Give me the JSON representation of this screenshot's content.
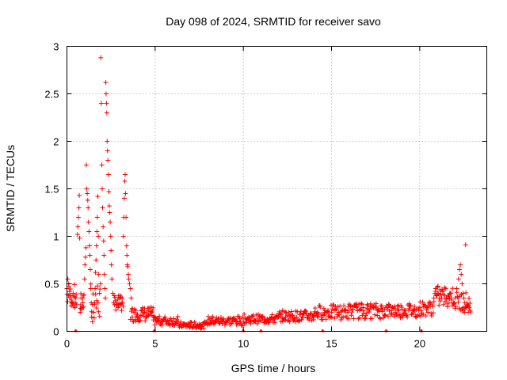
{
  "chart_data": {
    "type": "scatter",
    "title": "Day 098 of 2024, SRMTID for receiver savo",
    "xlabel": "GPS time / hours",
    "ylabel": "SRMTID / TECUs",
    "xlim": [
      0,
      23.8
    ],
    "ylim": [
      0,
      3
    ],
    "grid": true,
    "marker": "+",
    "color": "#ff0000",
    "xticks": [
      "0",
      "5",
      "10",
      "15",
      "20"
    ],
    "yticks": [
      "0",
      "0.5",
      "1",
      "1.5",
      "2",
      "2.5",
      "3"
    ],
    "series": [
      {
        "name": "SRMTID",
        "points": [
          [
            0.0,
            0.45
          ],
          [
            0.05,
            0.55
          ],
          [
            0.1,
            0.5
          ],
          [
            0.15,
            0.42
          ],
          [
            0.2,
            0.38
          ],
          [
            0.25,
            0.33
          ],
          [
            0.3,
            0.3
          ],
          [
            0.35,
            0.4
          ],
          [
            0.4,
            0.3
          ],
          [
            0.45,
            0.25
          ],
          [
            0.5,
            0.35
          ],
          [
            0.55,
            0.28
          ],
          [
            0.6,
            1.02
          ],
          [
            0.62,
            1.1
          ],
          [
            0.65,
            1.2
          ],
          [
            0.68,
            1.3
          ],
          [
            0.7,
            1.43
          ],
          [
            0.72,
            0.98
          ],
          [
            0.75,
            0.2
          ],
          [
            0.78,
            0.28
          ],
          [
            0.8,
            0.35
          ],
          [
            0.85,
            0.25
          ],
          [
            0.9,
            0.3
          ],
          [
            0.95,
            0.38
          ],
          [
            1.0,
            0.55
          ],
          [
            1.02,
            0.7
          ],
          [
            1.05,
            0.78
          ],
          [
            1.08,
            0.88
          ],
          [
            1.1,
            1.75
          ],
          [
            1.12,
            1.5
          ],
          [
            1.15,
            1.45
          ],
          [
            1.18,
            1.38
          ],
          [
            1.2,
            1.3
          ],
          [
            1.22,
            1.15
          ],
          [
            1.25,
            1.05
          ],
          [
            1.28,
            0.9
          ],
          [
            1.3,
            0.8
          ],
          [
            1.32,
            0.65
          ],
          [
            1.35,
            0.45
          ],
          [
            1.38,
            0.3
          ],
          [
            1.4,
            0.15
          ],
          [
            1.45,
            0.1
          ],
          [
            1.5,
            0.2
          ],
          [
            1.55,
            0.3
          ],
          [
            1.6,
            0.45
          ],
          [
            1.62,
            0.62
          ],
          [
            1.65,
            0.75
          ],
          [
            1.68,
            0.9
          ],
          [
            1.7,
            1.05
          ],
          [
            1.72,
            1.2
          ],
          [
            1.75,
            1.42
          ],
          [
            1.78,
            1.0
          ],
          [
            1.8,
            0.6
          ],
          [
            1.85,
            0.4
          ],
          [
            1.9,
            0.5
          ],
          [
            1.92,
            2.88
          ],
          [
            1.95,
            2.4
          ],
          [
            1.98,
            1.75
          ],
          [
            2.0,
            1.5
          ],
          [
            2.02,
            1.3
          ],
          [
            2.05,
            1.1
          ],
          [
            2.08,
            0.95
          ],
          [
            2.1,
            0.8
          ],
          [
            2.12,
            0.6
          ],
          [
            2.15,
            0.45
          ],
          [
            2.18,
            0.35
          ],
          [
            2.2,
            2.62
          ],
          [
            2.22,
            2.5
          ],
          [
            2.24,
            2.4
          ],
          [
            2.26,
            2.3
          ],
          [
            2.28,
            2.0
          ],
          [
            2.3,
            1.9
          ],
          [
            2.32,
            1.8
          ],
          [
            2.35,
            1.65
          ],
          [
            2.38,
            1.47
          ],
          [
            2.4,
            1.32
          ],
          [
            2.42,
            1.25
          ],
          [
            2.45,
            1.15
          ],
          [
            2.48,
            1.0
          ],
          [
            2.5,
            0.85
          ],
          [
            2.52,
            0.7
          ],
          [
            2.55,
            0.55
          ],
          [
            2.6,
            0.4
          ],
          [
            2.65,
            0.3
          ],
          [
            2.7,
            0.28
          ],
          [
            2.8,
            0.3
          ],
          [
            2.9,
            0.25
          ],
          [
            3.0,
            0.35
          ],
          [
            3.05,
            0.28
          ],
          [
            3.1,
            0.22
          ],
          [
            3.15,
            0.3
          ],
          [
            3.2,
            1.0
          ],
          [
            3.22,
            1.2
          ],
          [
            3.25,
            1.4
          ],
          [
            3.28,
            1.58
          ],
          [
            3.3,
            1.65
          ],
          [
            3.32,
            1.45
          ],
          [
            3.35,
            1.2
          ],
          [
            3.38,
            0.9
          ],
          [
            3.4,
            0.8
          ],
          [
            3.42,
            0.7
          ],
          [
            3.45,
            0.68
          ],
          [
            3.48,
            0.6
          ],
          [
            3.5,
            0.55
          ],
          [
            3.55,
            0.5
          ],
          [
            3.6,
            0.45
          ],
          [
            3.65,
            0.35
          ],
          [
            3.7,
            0.15
          ],
          [
            3.8,
            0.2
          ],
          [
            3.9,
            0.22
          ],
          [
            4.0,
            0.18
          ],
          [
            4.1,
            0.15
          ],
          [
            4.2,
            0.22
          ],
          [
            4.3,
            0.18
          ],
          [
            4.4,
            0.2
          ],
          [
            4.5,
            0.15
          ],
          [
            4.6,
            0.22
          ],
          [
            4.7,
            0.18
          ],
          [
            4.8,
            0.2
          ],
          [
            4.9,
            0.12
          ],
          [
            5.0,
            0.15
          ],
          [
            5.2,
            0.12
          ],
          [
            5.4,
            0.1
          ],
          [
            5.6,
            0.12
          ],
          [
            5.8,
            0.08
          ],
          [
            6.0,
            0.1
          ],
          [
            6.2,
            0.08
          ],
          [
            6.4,
            0.07
          ],
          [
            6.6,
            0.06
          ],
          [
            6.8,
            0.05
          ],
          [
            7.0,
            0.05
          ],
          [
            7.2,
            0.05
          ],
          [
            7.4,
            0.06
          ],
          [
            7.6,
            0.07
          ],
          [
            7.8,
            0.08
          ],
          [
            8.0,
            0.12
          ],
          [
            8.2,
            0.14
          ],
          [
            8.4,
            0.12
          ],
          [
            8.6,
            0.1
          ],
          [
            8.8,
            0.1
          ],
          [
            9.0,
            0.1
          ],
          [
            9.2,
            0.12
          ],
          [
            9.4,
            0.1
          ],
          [
            9.6,
            0.11
          ],
          [
            9.8,
            0.1
          ],
          [
            10.0,
            0.1
          ],
          [
            10.2,
            0.12
          ],
          [
            10.4,
            0.1
          ],
          [
            10.6,
            0.12
          ],
          [
            10.8,
            0.13
          ],
          [
            11.0,
            0.12
          ],
          [
            11.2,
            0.14
          ],
          [
            11.4,
            0.12
          ],
          [
            11.6,
            0.14
          ],
          [
            11.8,
            0.15
          ],
          [
            12.0,
            0.15
          ],
          [
            12.2,
            0.14
          ],
          [
            12.4,
            0.15
          ],
          [
            12.6,
            0.16
          ],
          [
            12.8,
            0.17
          ],
          [
            13.0,
            0.15
          ],
          [
            13.2,
            0.18
          ],
          [
            13.4,
            0.15
          ],
          [
            13.6,
            0.17
          ],
          [
            13.8,
            0.18
          ],
          [
            14.0,
            0.18
          ],
          [
            14.2,
            0.2
          ],
          [
            14.4,
            0.18
          ],
          [
            14.6,
            0.2
          ],
          [
            14.8,
            0.22
          ],
          [
            15.0,
            0.2
          ],
          [
            15.2,
            0.22
          ],
          [
            15.4,
            0.2
          ],
          [
            15.6,
            0.22
          ],
          [
            15.8,
            0.23
          ],
          [
            16.0,
            0.22
          ],
          [
            16.2,
            0.23
          ],
          [
            16.4,
            0.25
          ],
          [
            16.6,
            0.22
          ],
          [
            16.8,
            0.25
          ],
          [
            17.0,
            0.24
          ],
          [
            17.2,
            0.26
          ],
          [
            17.4,
            0.25
          ],
          [
            17.6,
            0.22
          ],
          [
            17.8,
            0.24
          ],
          [
            18.0,
            0.23
          ],
          [
            18.2,
            0.25
          ],
          [
            18.4,
            0.22
          ],
          [
            18.6,
            0.24
          ],
          [
            18.8,
            0.22
          ],
          [
            19.0,
            0.23
          ],
          [
            19.2,
            0.22
          ],
          [
            19.4,
            0.24
          ],
          [
            19.6,
            0.22
          ],
          [
            19.8,
            0.23
          ],
          [
            20.0,
            0.25
          ],
          [
            20.2,
            0.26
          ],
          [
            20.4,
            0.25
          ],
          [
            20.6,
            0.3
          ],
          [
            20.8,
            0.35
          ],
          [
            20.9,
            0.45
          ],
          [
            21.0,
            0.4
          ],
          [
            21.1,
            0.35
          ],
          [
            21.2,
            0.38
          ],
          [
            21.3,
            0.42
          ],
          [
            21.4,
            0.38
          ],
          [
            21.5,
            0.35
          ],
          [
            21.6,
            0.38
          ],
          [
            21.7,
            0.4
          ],
          [
            21.8,
            0.35
          ],
          [
            21.9,
            0.3
          ],
          [
            22.0,
            0.35
          ],
          [
            22.1,
            0.45
          ],
          [
            22.2,
            0.55
          ],
          [
            22.25,
            0.65
          ],
          [
            22.3,
            0.7
          ],
          [
            22.35,
            0.6
          ],
          [
            22.4,
            0.5
          ],
          [
            22.45,
            0.4
          ],
          [
            22.5,
            0.35
          ],
          [
            22.55,
            0.3
          ],
          [
            22.6,
            0.91
          ],
          [
            22.65,
            0.25
          ],
          [
            22.7,
            0.28
          ],
          [
            22.75,
            0.2
          ],
          [
            22.8,
            0.25
          ],
          [
            22.85,
            0.22
          ]
        ],
        "band": [
          [
            0.0,
            0.55,
            0.25,
            0.5
          ],
          [
            0.75,
            1.0,
            0.18,
            0.4
          ],
          [
            1.35,
            1.9,
            0.1,
            0.55
          ],
          [
            2.65,
            3.2,
            0.22,
            0.38
          ],
          [
            3.6,
            4.9,
            0.1,
            0.26
          ],
          [
            4.9,
            6.3,
            0.06,
            0.16
          ],
          [
            6.3,
            7.9,
            0.03,
            0.1
          ],
          [
            7.9,
            10.0,
            0.06,
            0.16
          ],
          [
            10.0,
            12.0,
            0.08,
            0.18
          ],
          [
            12.0,
            14.0,
            0.1,
            0.22
          ],
          [
            14.0,
            16.0,
            0.12,
            0.28
          ],
          [
            16.0,
            18.0,
            0.13,
            0.3
          ],
          [
            18.0,
            20.0,
            0.14,
            0.3
          ],
          [
            20.0,
            20.8,
            0.16,
            0.32
          ],
          [
            20.8,
            22.0,
            0.25,
            0.48
          ],
          [
            22.0,
            22.9,
            0.2,
            0.42
          ]
        ]
      }
    ],
    "zero_markers_x": [
      0.5,
      4.95,
      10.0,
      11.0,
      14.5,
      18.1,
      20.1
    ]
  }
}
